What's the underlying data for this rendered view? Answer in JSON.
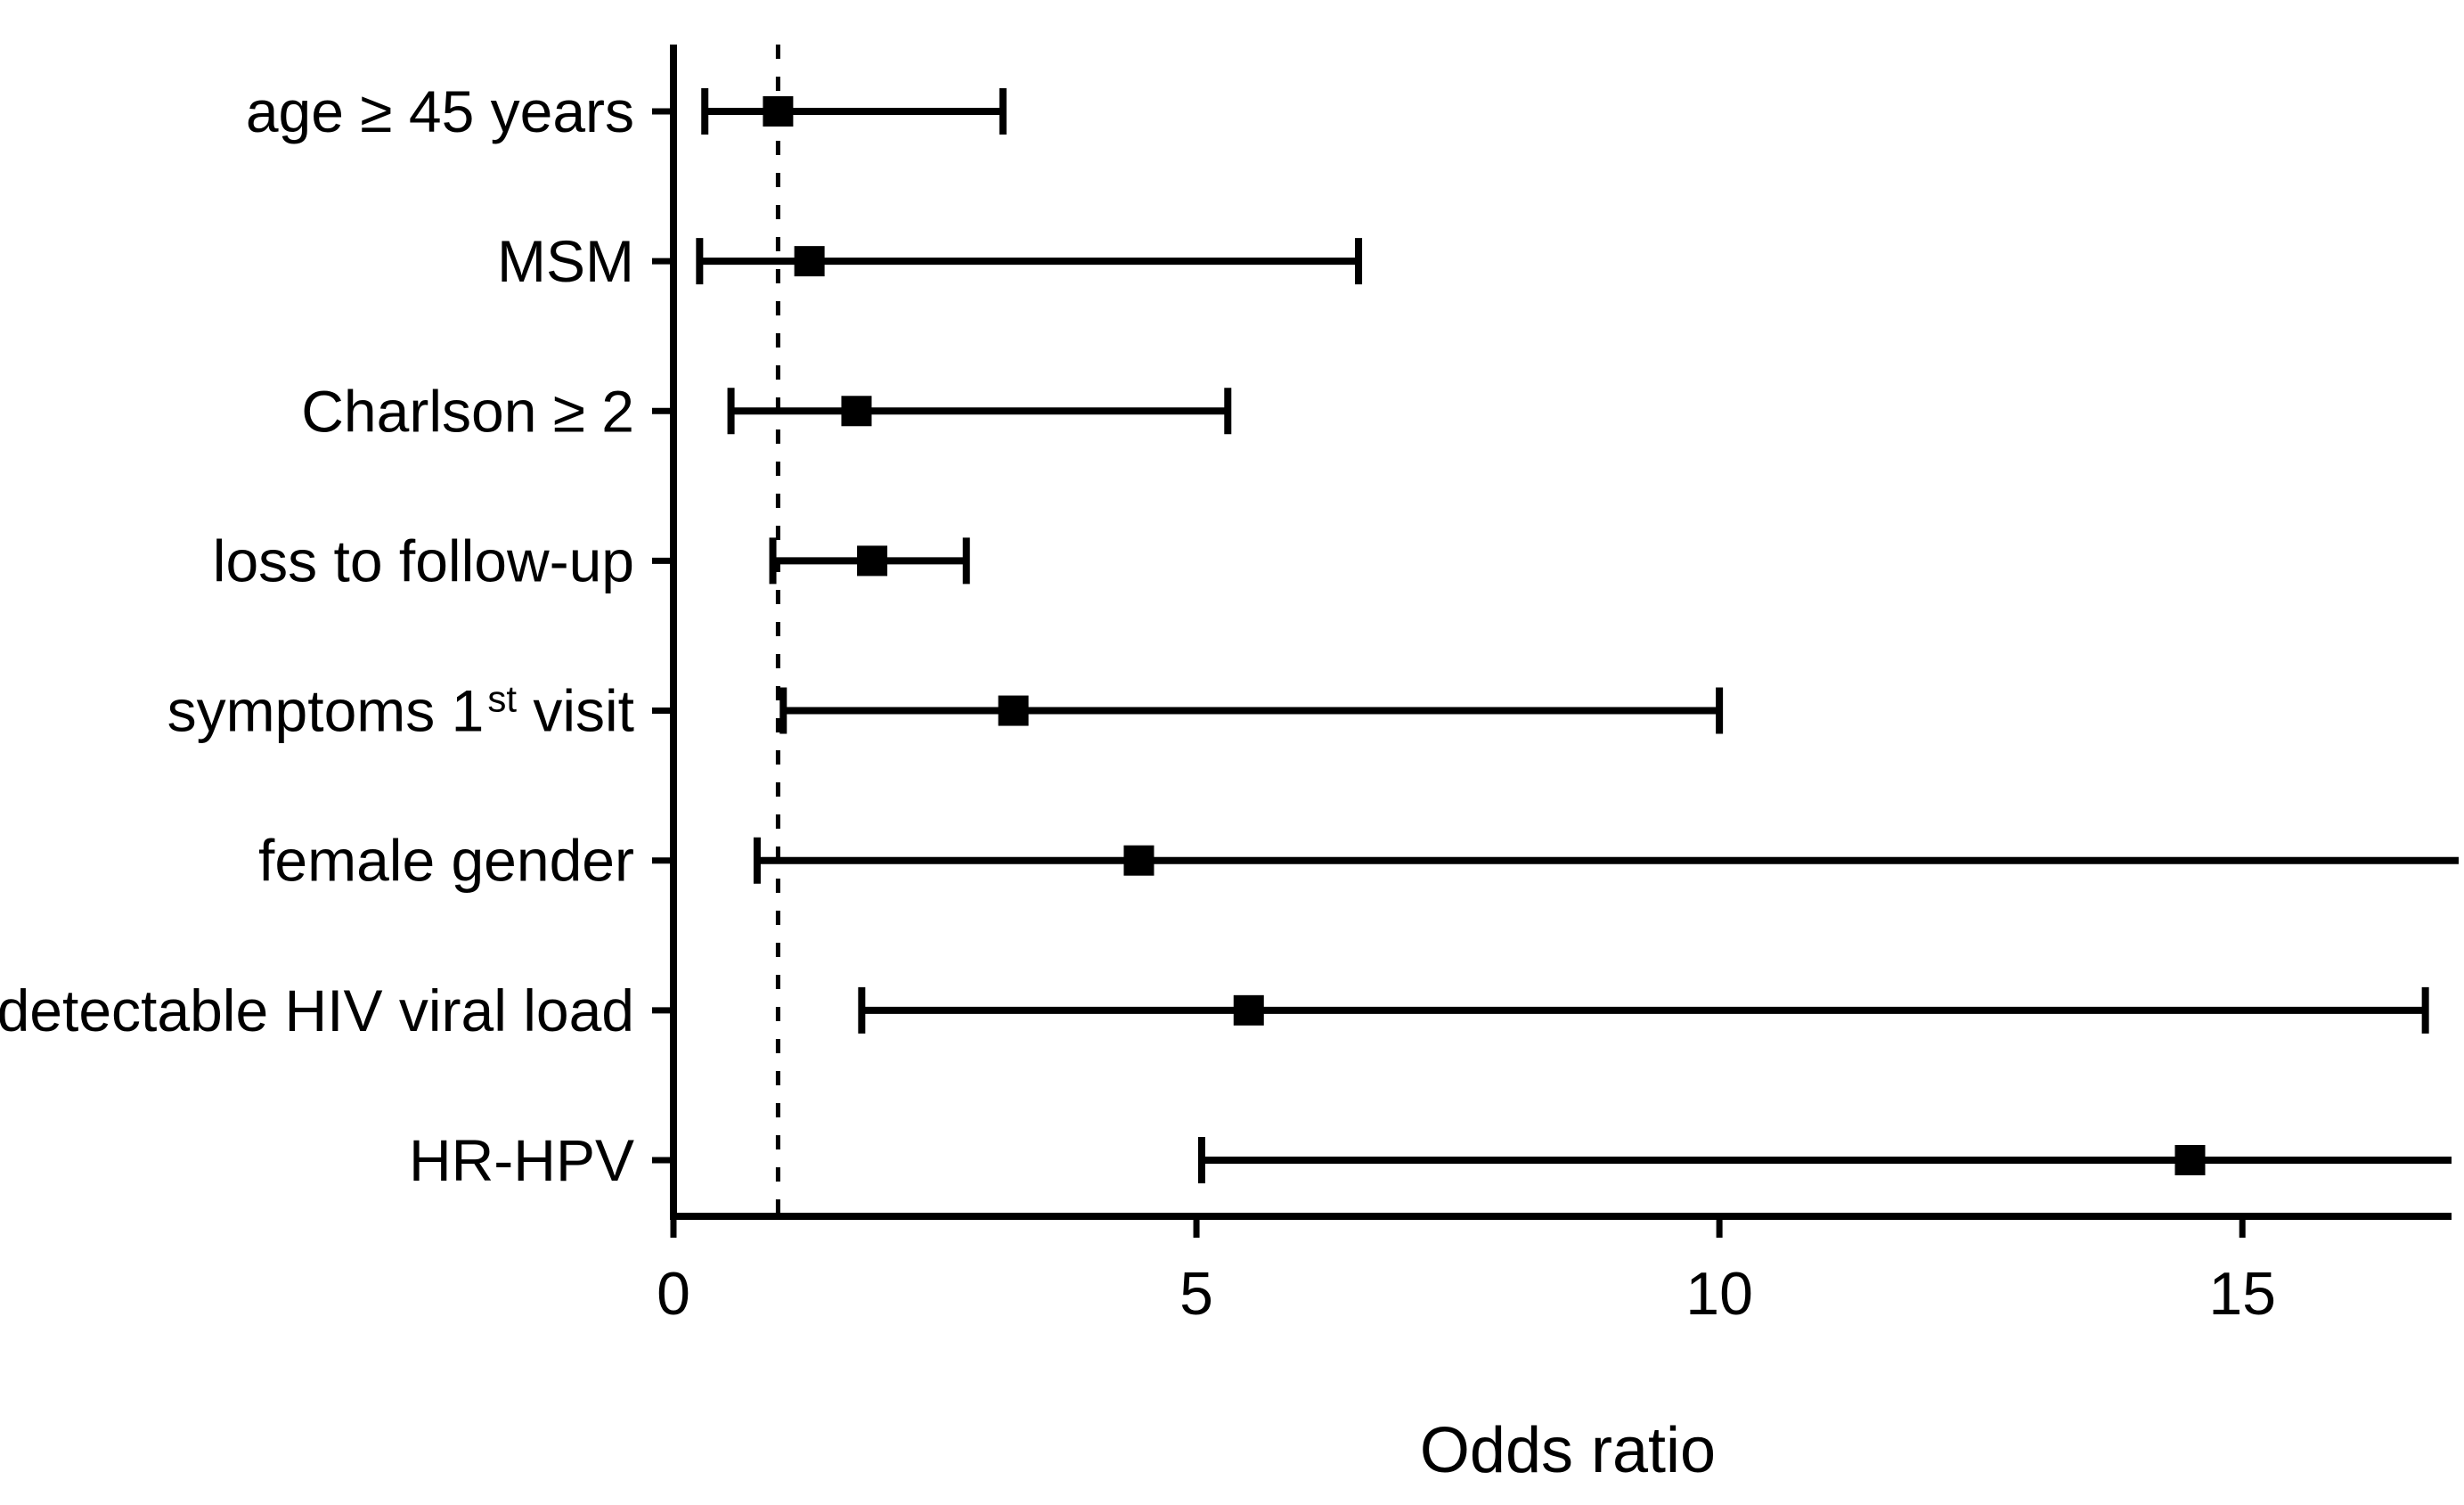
{
  "figure": {
    "background": "#ffffff",
    "foreground": "#000000"
  },
  "chart_data": {
    "type": "scatter",
    "subtype": "forest-plot-horizontal",
    "title": "",
    "xlabel": "Odds ratio",
    "ylabel": "",
    "xlim": [
      0,
      17
    ],
    "xticks": [
      0,
      5,
      10,
      15
    ],
    "grid": false,
    "legend": false,
    "reference_line": {
      "x": 1,
      "style": "dashed",
      "color": "#000000"
    },
    "marker": "filled-square",
    "colors": {
      "marker": "#000000",
      "ci_line": "#000000",
      "axis": "#000000",
      "text": "#000000",
      "background": "#ffffff"
    },
    "rows": [
      {
        "label": "age ≥ 45 years",
        "or": 1.0,
        "ci_low": 0.3,
        "ci_high": 3.15,
        "ci_high_truncated": false
      },
      {
        "label": "MSM",
        "or": 1.3,
        "ci_low": 0.25,
        "ci_high": 6.55,
        "ci_high_truncated": false
      },
      {
        "label": "Charlson ≥ 2",
        "or": 1.75,
        "ci_low": 0.55,
        "ci_high": 5.3,
        "ci_high_truncated": false
      },
      {
        "label": "loss to follow-up",
        "or": 1.9,
        "ci_low": 0.95,
        "ci_high": 2.8,
        "ci_high_truncated": false
      },
      {
        "label": "symptoms 1st visit",
        "label_parts": [
          {
            "t": "symptoms 1"
          },
          {
            "t": "st",
            "sup": true
          },
          {
            "t": " visit"
          }
        ],
        "or": 3.25,
        "ci_low": 1.05,
        "ci_high": 10.0,
        "ci_high_truncated": false
      },
      {
        "label": "female gender",
        "or": 4.45,
        "ci_low": 0.8,
        "ci_high": 17.1,
        "ci_high_truncated": true
      },
      {
        "label": "detectable HIV viral load",
        "or": 5.5,
        "ci_low": 1.8,
        "ci_high": 16.75,
        "ci_high_truncated": false
      },
      {
        "label": "HR-HPV",
        "or": 14.5,
        "ci_low": 5.05,
        "ci_high": 17.0,
        "ci_high_truncated": true
      }
    ]
  }
}
